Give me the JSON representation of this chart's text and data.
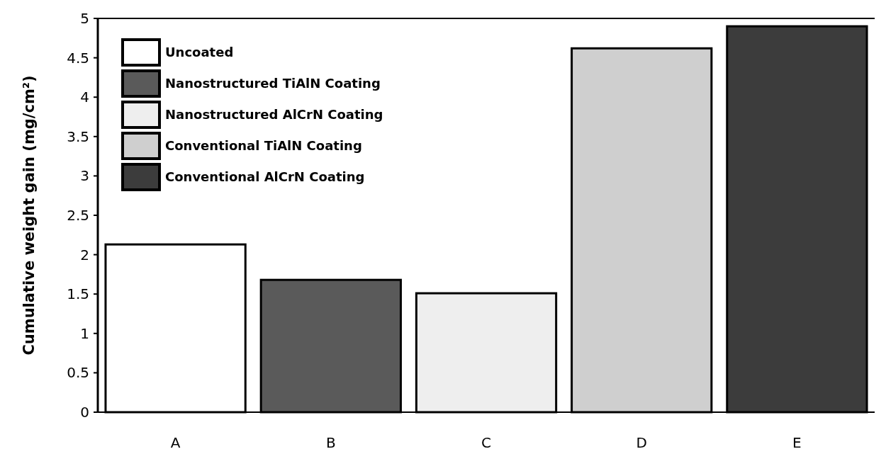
{
  "chart_data": {
    "type": "bar",
    "ylabel": "Cumulative weight gain (mg/cm²)",
    "categories": [
      "A",
      "B",
      "C",
      "D",
      "E"
    ],
    "series": [
      {
        "name": "Uncoated",
        "color": "#ffffff",
        "values": [
          2.13,
          null,
          null,
          null,
          null
        ]
      },
      {
        "name": "Nanostructured TiAlN Coating",
        "color": "#5a5a5a",
        "values": [
          null,
          1.68,
          null,
          null,
          null
        ]
      },
      {
        "name": "Nanostructured AlCrN Coating",
        "color": "#eeeeee",
        "values": [
          null,
          null,
          1.51,
          null,
          null
        ]
      },
      {
        "name": "Conventional TiAlN Coating",
        "color": "#cfcfcf",
        "values": [
          null,
          null,
          null,
          4.62,
          null
        ]
      },
      {
        "name": "Conventional AlCrN Coating",
        "color": "#3c3c3c",
        "values": [
          null,
          null,
          null,
          null,
          4.9
        ]
      }
    ],
    "ylim": [
      0,
      5
    ],
    "yticks": [
      0,
      0.5,
      1,
      1.5,
      2,
      2.5,
      3,
      3.5,
      4,
      4.5,
      5
    ],
    "grid": false,
    "legend": "top left"
  }
}
